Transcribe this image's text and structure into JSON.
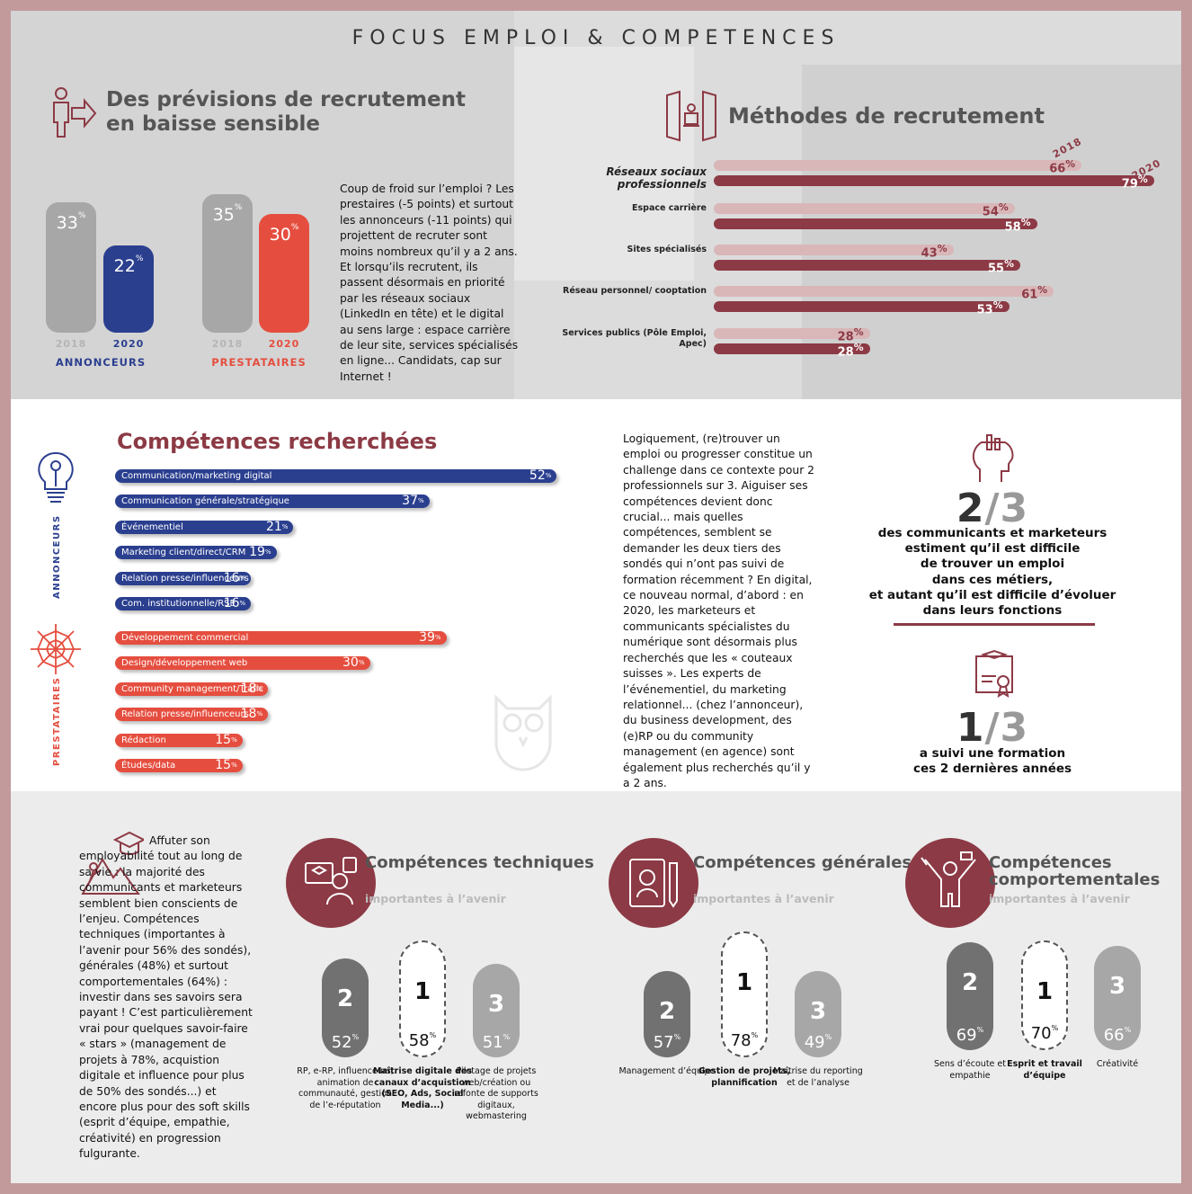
{
  "header": {
    "title": "FOCUS EMPLOI & COMPETENCES"
  },
  "recruit": {
    "title_line1": "Des prévisions de recrutement",
    "title_line2": "en baisse sensible",
    "paragraph": "Coup de froid sur l’emploi ? Les prestaires (-5 points) et surtout les annonceurs (-11 points) qui projettent de recruter sont moins nombreux qu’il y a 2 ans. Et lorsqu’ils recrutent, ils passent désormais en priorité par les réseaux sociaux (LinkedIn en tête) et le digital au sens large : espace carrière de leur site, services spécialisés en ligne... Candidats, cap sur Internet !"
  },
  "methods_title": "Méthodes de recrutement",
  "skills": {
    "title": "Compétences recherchées",
    "group1_label": "ANNONCEURS",
    "group2_label": "PRESTATAIRES",
    "paragraph": "Logiquement, (re)trouver un emploi ou progresser constitue un challenge dans ce contexte pour 2 professionnels sur 3. Aiguiser ses compétences devient donc crucial... mais quelles compétences, semblent se demander les deux tiers des sondés qui n’ont pas suivi de formation récemment ? En digital, ce nouveau normal, d’abord : en 2020, les marketeurs et communicants spécialistes du numérique sont désormais plus recherchés que les « couteaux suisses ». Les experts de l’événementiel, du marketing relationnel... (chez l’annonceur), du business development, des (e)RP ou du community management (en agence) sont également plus recherchés qu’il y a 2 ans."
  },
  "stats": {
    "stat1_num": "2",
    "stat1_den": "3",
    "stat1_text": [
      "des communicants et marketeurs",
      "estiment qu’il est difficile",
      "de trouver un emploi",
      "dans ces métiers,",
      "et autant qu’il est difficile d’évoluer",
      "dans leurs fonctions"
    ],
    "stat2_num": "1",
    "stat2_den": "3",
    "stat2_text": [
      "a suivi une formation",
      "ces 2 dernières années"
    ]
  },
  "future": {
    "intro": "Affuter son employabilité tout au long de sa vie : la majorité des communicants et marketeurs semblent bien conscients de l’enjeu. Compétences techniques (importantes à l’avenir pour 56% des sondés), générales (48%) et surtout comportementales (64%) : investir dans ses savoirs sera payant ! C’est particulièrement vrai pour quelques savoir-faire « stars » (management de projets à 78%, acquistion digitale et influence pour plus de 50% des sondés...) et encore plus pour des soft skills (esprit d’équipe, empathie, créativité) en progression fulgurante.",
    "subtitle": "importantes à l’avenir"
  },
  "colors": {
    "announcer": "#2b3f8f",
    "provider": "#e54e3f",
    "brand": "#8c3a45",
    "light_brand": "#d9b6b8",
    "grey": "#a7a7a7"
  },
  "chart_data": [
    {
      "type": "bar",
      "title": "Des prévisions de recrutement en baisse sensible",
      "categories": [
        "ANNONCEURS",
        "PRESTATAIRES"
      ],
      "series": [
        {
          "name": "2018",
          "values": [
            33,
            35
          ]
        },
        {
          "name": "2020",
          "values": [
            22,
            30
          ]
        }
      ],
      "unit": "%"
    },
    {
      "type": "bar",
      "title": "Méthodes de recrutement",
      "orientation": "horizontal",
      "categories": [
        "Réseaux sociaux professionnels",
        "Espace carrière",
        "Sites spécialisés",
        "Réseau personnel/ cooptation",
        "Services publics (Pôle Emploi, Apec)"
      ],
      "series": [
        {
          "name": "2018",
          "values": [
            66,
            54,
            43,
            61,
            28
          ]
        },
        {
          "name": "2020",
          "values": [
            79,
            58,
            55,
            53,
            28
          ]
        }
      ],
      "unit": "%"
    },
    {
      "type": "bar",
      "title": "Compétences recherchées",
      "orientation": "horizontal",
      "groups": [
        {
          "name": "ANNONCEURS",
          "categories": [
            "Communication/marketing digital",
            "Communication générale/stratégique",
            "Événementiel",
            "Marketing client/direct/CRM",
            "Relation presse/influenceurs",
            "Com. institutionnelle/RSE"
          ],
          "values": [
            52,
            37,
            21,
            19,
            16,
            16
          ]
        },
        {
          "name": "PRESTATAIRES",
          "categories": [
            "Développement commercial",
            "Design/développement web",
            "Community management/Trafic",
            "Relation presse/influenceurs",
            "Rédaction",
            "Études/data"
          ],
          "values": [
            39,
            30,
            18,
            18,
            15,
            15
          ]
        }
      ],
      "unit": "%"
    },
    {
      "type": "bar",
      "title": "Compétences techniques",
      "subtitle": "importantes à l’avenir",
      "categories": [
        "RP, e-RP, influenceurs, animation de communauté, gestion de l’e-réputation",
        "Maîtrise digitale des canaux d’acquistion (SEO, Ads, Social Media...)",
        "Pilotage de projets web/création ou refonte de supports digitaux, webmastering"
      ],
      "ranks": [
        "2",
        "1",
        "3"
      ],
      "values": [
        52,
        58,
        51
      ],
      "unit": "%"
    },
    {
      "type": "bar",
      "title": "Compétences générales",
      "subtitle": "importantes à l’avenir",
      "categories": [
        "Management d’équipe",
        "Gestion de projets, plannification",
        "Maîtrise du reporting et de l’analyse"
      ],
      "ranks": [
        "2",
        "1",
        "3"
      ],
      "values": [
        57,
        78,
        49
      ],
      "unit": "%"
    },
    {
      "type": "bar",
      "title": "Compétences comportementales",
      "subtitle": "importantes à l’avenir",
      "categories": [
        "Sens d’écoute et empathie",
        "Esprit et travail d’équipe",
        "Créativité"
      ],
      "ranks": [
        "2",
        "1",
        "3"
      ],
      "values": [
        69,
        70,
        66
      ],
      "unit": "%"
    }
  ]
}
